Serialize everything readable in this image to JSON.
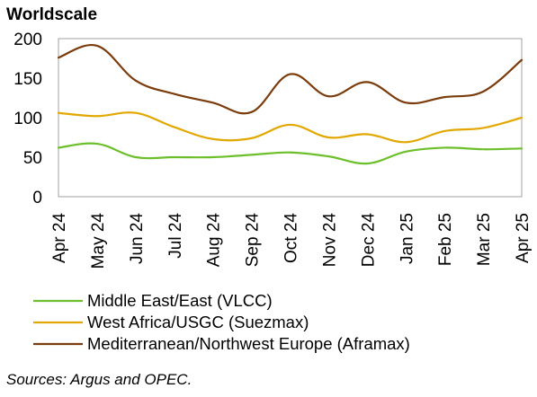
{
  "chart_data": {
    "type": "line",
    "title": "",
    "ylabel": "Worldscale",
    "xlabel": "",
    "ylim": [
      0,
      200
    ],
    "yticks": [
      "0",
      "50",
      "100",
      "150",
      "200"
    ],
    "categories": [
      "Apr 24",
      "May 24",
      "Jun 24",
      "Jul 24",
      "Aug 24",
      "Sep 24",
      "Oct 24",
      "Nov 24",
      "Dec 24",
      "Jan 25",
      "Feb 25",
      "Mar 25",
      "Apr 25"
    ],
    "grid": false,
    "legend_position": "bottom",
    "series": [
      {
        "name": "Middle East/East (VLCC)",
        "color": "#6cbf2a",
        "values": [
          62,
          67,
          50,
          50,
          50,
          53,
          56,
          51,
          42,
          57,
          62,
          60,
          61
        ]
      },
      {
        "name": "West Africa/USGC (Suezmax)",
        "color": "#e2a800",
        "values": [
          106,
          102,
          106,
          88,
          73,
          74,
          91,
          75,
          79,
          69,
          83,
          87,
          100
        ]
      },
      {
        "name": "Mediterranean/Northwest Europe (Aframax)",
        "color": "#7a3c0c",
        "values": [
          176,
          191,
          147,
          130,
          119,
          107,
          155,
          127,
          145,
          119,
          126,
          133,
          173
        ]
      }
    ]
  },
  "source_note": "Sources: Argus and OPEC."
}
